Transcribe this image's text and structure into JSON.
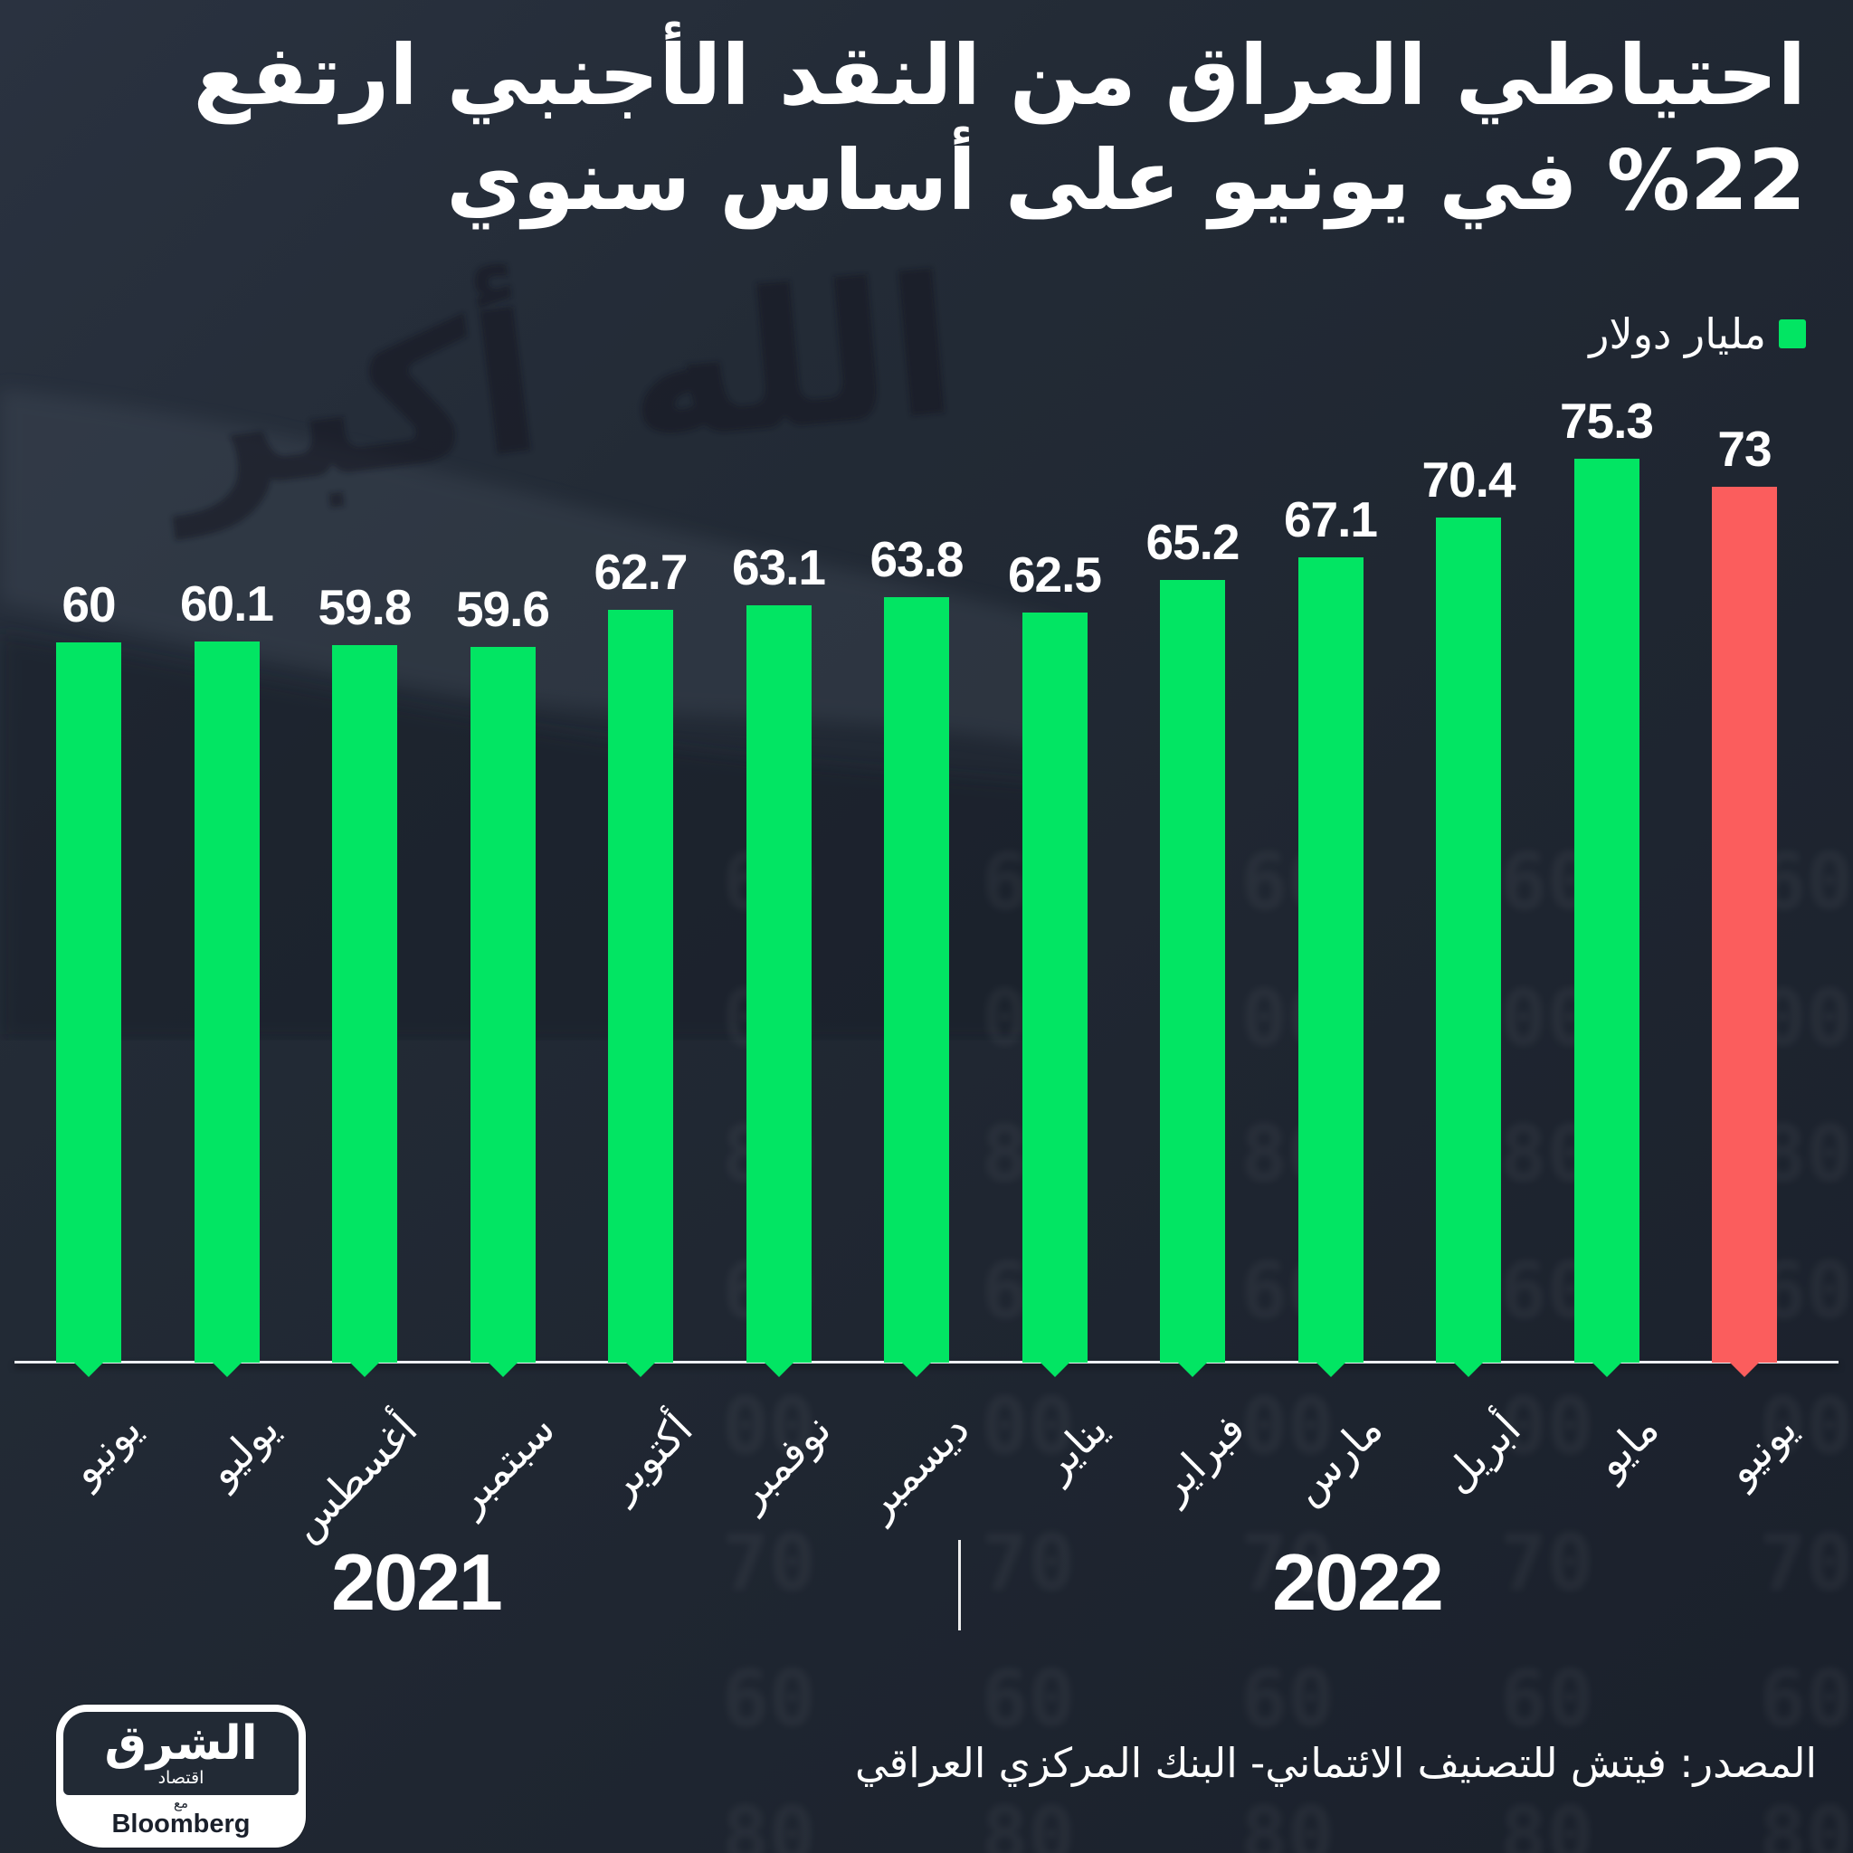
{
  "title": {
    "line1": "احتياطي العراق من النقد الأجنبي ارتفع",
    "line2": "%22 في يونيو على أساس سنوي"
  },
  "legend": {
    "label": "مليار دولار",
    "swatch_color": "#02E563"
  },
  "chart_data": {
    "type": "bar",
    "title": "احتياطي العراق من النقد الأجنبي ارتفع 22% في يونيو على أساس سنوي",
    "unit_label": "مليار دولار",
    "categories": [
      "يونيو",
      "يوليو",
      "أغسطس",
      "سبتمبر",
      "أكتوبر",
      "نوفمبر",
      "ديسمبر",
      "يناير",
      "فبراير",
      "مارس",
      "أبريل",
      "مايو",
      "يونيو"
    ],
    "values": [
      60,
      60.1,
      59.8,
      59.6,
      62.7,
      63.1,
      63.8,
      62.5,
      65.2,
      67.1,
      70.4,
      75.3,
      73
    ],
    "value_labels": [
      "60",
      "60.1",
      "59.8",
      "59.6",
      "62.7",
      "63.1",
      "63.8",
      "62.5",
      "65.2",
      "67.1",
      "70.4",
      "75.3",
      "73"
    ],
    "highlighted_index": 12,
    "year_groups": [
      {
        "label": "2021",
        "from": 0,
        "to": 6
      },
      {
        "label": "2022",
        "from": 7,
        "to": 12
      }
    ],
    "ylim": [
      0,
      80
    ],
    "grid": false,
    "legend_position": "top-right",
    "xlabel": "",
    "ylabel": "مليار دولار"
  },
  "colors": {
    "bar_green": "#02E563",
    "bar_red": "#FB5D5D",
    "background": "#212935",
    "axis": "#EDEFF2",
    "text": "#FFFFFF"
  },
  "source": {
    "text": "المصدر: فيتش للتصنيف الائتماني- البنك المركزي العراقي"
  },
  "logo": {
    "name_arabic": "الشرق",
    "sub_arabic": "اقتصاد",
    "with_arabic": "مع",
    "partner": "Bloomberg"
  },
  "watermark": {
    "flag_word1": "الله",
    "flag_word2": "أكبر",
    "noise_digits": "60\n00\n80\n60\n00\n70\n60\n80"
  }
}
